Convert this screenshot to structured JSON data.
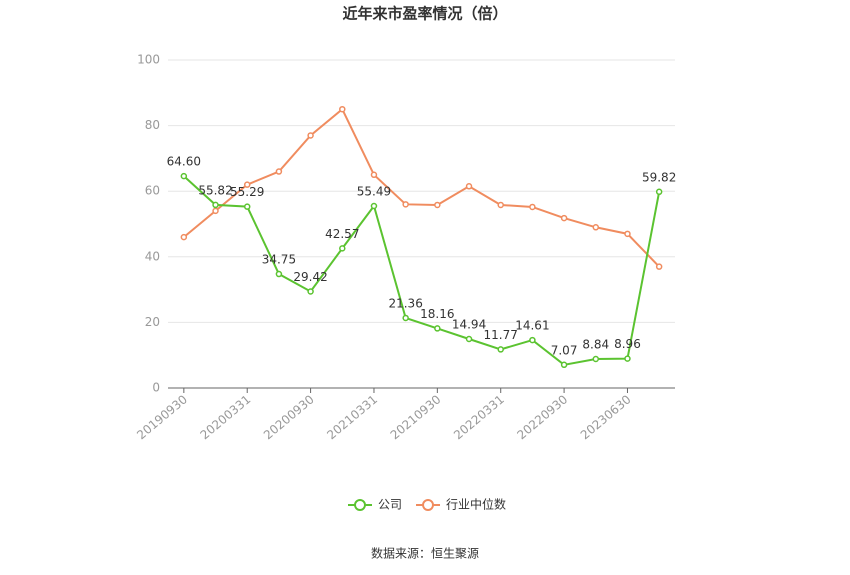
{
  "chart_data": {
    "type": "line",
    "title": "近年来市盈率情况（倍）",
    "source": "数据来源：恒生聚源",
    "categories": [
      "20190930",
      null,
      "20200331",
      null,
      "20200930",
      null,
      "20210331",
      null,
      "20210930",
      null,
      "20220331",
      null,
      "20220930",
      null,
      "20230630",
      null
    ],
    "series": [
      {
        "name": "公司",
        "color": "#5bc330",
        "values": [
          64.6,
          55.82,
          55.29,
          34.75,
          29.42,
          42.57,
          55.49,
          21.36,
          18.16,
          14.94,
          11.77,
          14.61,
          7.07,
          8.84,
          8.96,
          59.82
        ],
        "value_labels": [
          "64.60",
          "55.82",
          "55.29",
          "34.75",
          "29.42",
          "42.57",
          "55.49",
          "21.36",
          "18.16",
          "14.94",
          "11.77",
          "14.61",
          "7.07",
          "8.84",
          "8.96",
          "59.82"
        ]
      },
      {
        "name": "行业中位数",
        "color": "#f08c5f",
        "values": [
          46,
          54,
          62,
          66,
          77,
          85,
          65,
          56,
          55.8,
          61.5,
          55.8,
          55.2,
          51.8,
          49,
          47,
          37
        ]
      }
    ],
    "ylim": [
      0,
      100
    ],
    "yticks": [
      0,
      20,
      40,
      60,
      80,
      100
    ],
    "grid": true,
    "legend": "bottom"
  }
}
